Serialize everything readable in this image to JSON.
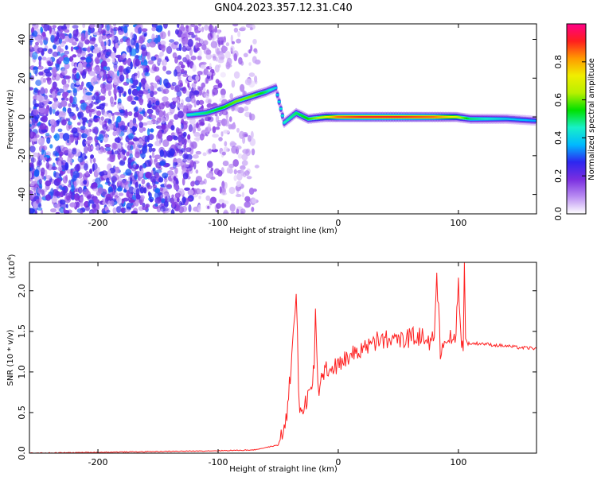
{
  "title": "GN04.2023.357.12.31.C40",
  "chart_data": [
    {
      "type": "heatmap",
      "xlabel": "Height of straight line (km)",
      "ylabel": "Frequency (Hz)",
      "xlim": [
        -257,
        165
      ],
      "ylim": [
        -50,
        48
      ],
      "xticks": [
        -200,
        -100,
        0,
        100
      ],
      "yticks": [
        -40,
        -20,
        0,
        20,
        40
      ],
      "colorbar": {
        "label": "Normalized spectral amplitude",
        "range": [
          0,
          1
        ],
        "ticks": [
          "0.0",
          "0.2",
          "0.4",
          "0.6",
          "0.8"
        ],
        "colormap": [
          "#ffffff",
          "#b98cf2",
          "#7a2ee0",
          "#2d27f0",
          "#00b9ff",
          "#18f0c8",
          "#00e000",
          "#b8f000",
          "#f0ee00",
          "#ff9a00",
          "#ff1e1e",
          "#ff0088"
        ]
      },
      "noise_region_x": [
        -257,
        -75
      ],
      "track": [
        {
          "x": -125,
          "f": 1,
          "amp": 0.45
        },
        {
          "x": -110,
          "f": 2,
          "amp": 0.5
        },
        {
          "x": -95,
          "f": 5,
          "amp": 0.55
        },
        {
          "x": -85,
          "f": 8,
          "amp": 0.6
        },
        {
          "x": -70,
          "f": 11,
          "amp": 0.6
        },
        {
          "x": -60,
          "f": 13,
          "amp": 0.5
        },
        {
          "x": -52,
          "f": 15,
          "amp": 0.4
        },
        {
          "x": -45,
          "f": -3,
          "amp": 0.45
        },
        {
          "x": -35,
          "f": 2,
          "amp": 0.5
        },
        {
          "x": -25,
          "f": -1,
          "amp": 0.55
        },
        {
          "x": -10,
          "f": 0,
          "amp": 0.7
        },
        {
          "x": 0,
          "f": 0,
          "amp": 0.85
        },
        {
          "x": 20,
          "f": 0,
          "amp": 0.9
        },
        {
          "x": 50,
          "f": 0,
          "amp": 0.9
        },
        {
          "x": 80,
          "f": 0,
          "amp": 0.85
        },
        {
          "x": 98,
          "f": 0,
          "amp": 0.7
        },
        {
          "x": 110,
          "f": -1,
          "amp": 0.5
        },
        {
          "x": 140,
          "f": -1,
          "amp": 0.4
        },
        {
          "x": 165,
          "f": -2,
          "amp": 0.35
        }
      ]
    },
    {
      "type": "line",
      "xlabel": "Height of straight line (km)",
      "ylabel": "SNR (10 * v/v)",
      "y_multiplier": "(x10",
      "y_multiplier_exp": "4",
      "xlim": [
        -257,
        165
      ],
      "ylim": [
        0,
        2.35
      ],
      "xticks": [
        -200,
        -100,
        0,
        100
      ],
      "yticks": [
        "0.0",
        "0.5",
        "1.0",
        "1.5",
        "2.0"
      ],
      "color": "#ff2020",
      "series": [
        {
          "x": [
            -257,
            -200,
            -150,
            -100,
            -70,
            -50,
            -45,
            -42,
            -40,
            -38,
            -36,
            -35,
            -34,
            -33,
            -32,
            -30,
            -28,
            -26,
            -24,
            -22,
            -20,
            -19,
            -18,
            -17,
            -16,
            -14,
            -12,
            -10,
            -5,
            0,
            10,
            20,
            30,
            40,
            50,
            60,
            70,
            75,
            80,
            82,
            85,
            90,
            95,
            98,
            100,
            102,
            104,
            105,
            106,
            108,
            110,
            120,
            130,
            140,
            150,
            165
          ],
          "y": [
            0.0,
            0.01,
            0.02,
            0.03,
            0.04,
            0.1,
            0.3,
            0.6,
            0.9,
            1.3,
            1.7,
            1.95,
            1.5,
            0.8,
            0.5,
            0.55,
            0.6,
            0.7,
            0.75,
            0.8,
            1.1,
            1.85,
            1.2,
            0.9,
            0.8,
            0.95,
            1.0,
            1.05,
            1.05,
            1.1,
            1.2,
            1.3,
            1.35,
            1.4,
            1.4,
            1.42,
            1.42,
            1.4,
            1.45,
            2.15,
            1.3,
            1.45,
            1.35,
            1.5,
            2.2,
            1.4,
            1.3,
            2.35,
            1.4,
            1.35,
            1.35,
            1.35,
            1.33,
            1.32,
            1.3,
            1.29
          ]
        }
      ]
    }
  ]
}
